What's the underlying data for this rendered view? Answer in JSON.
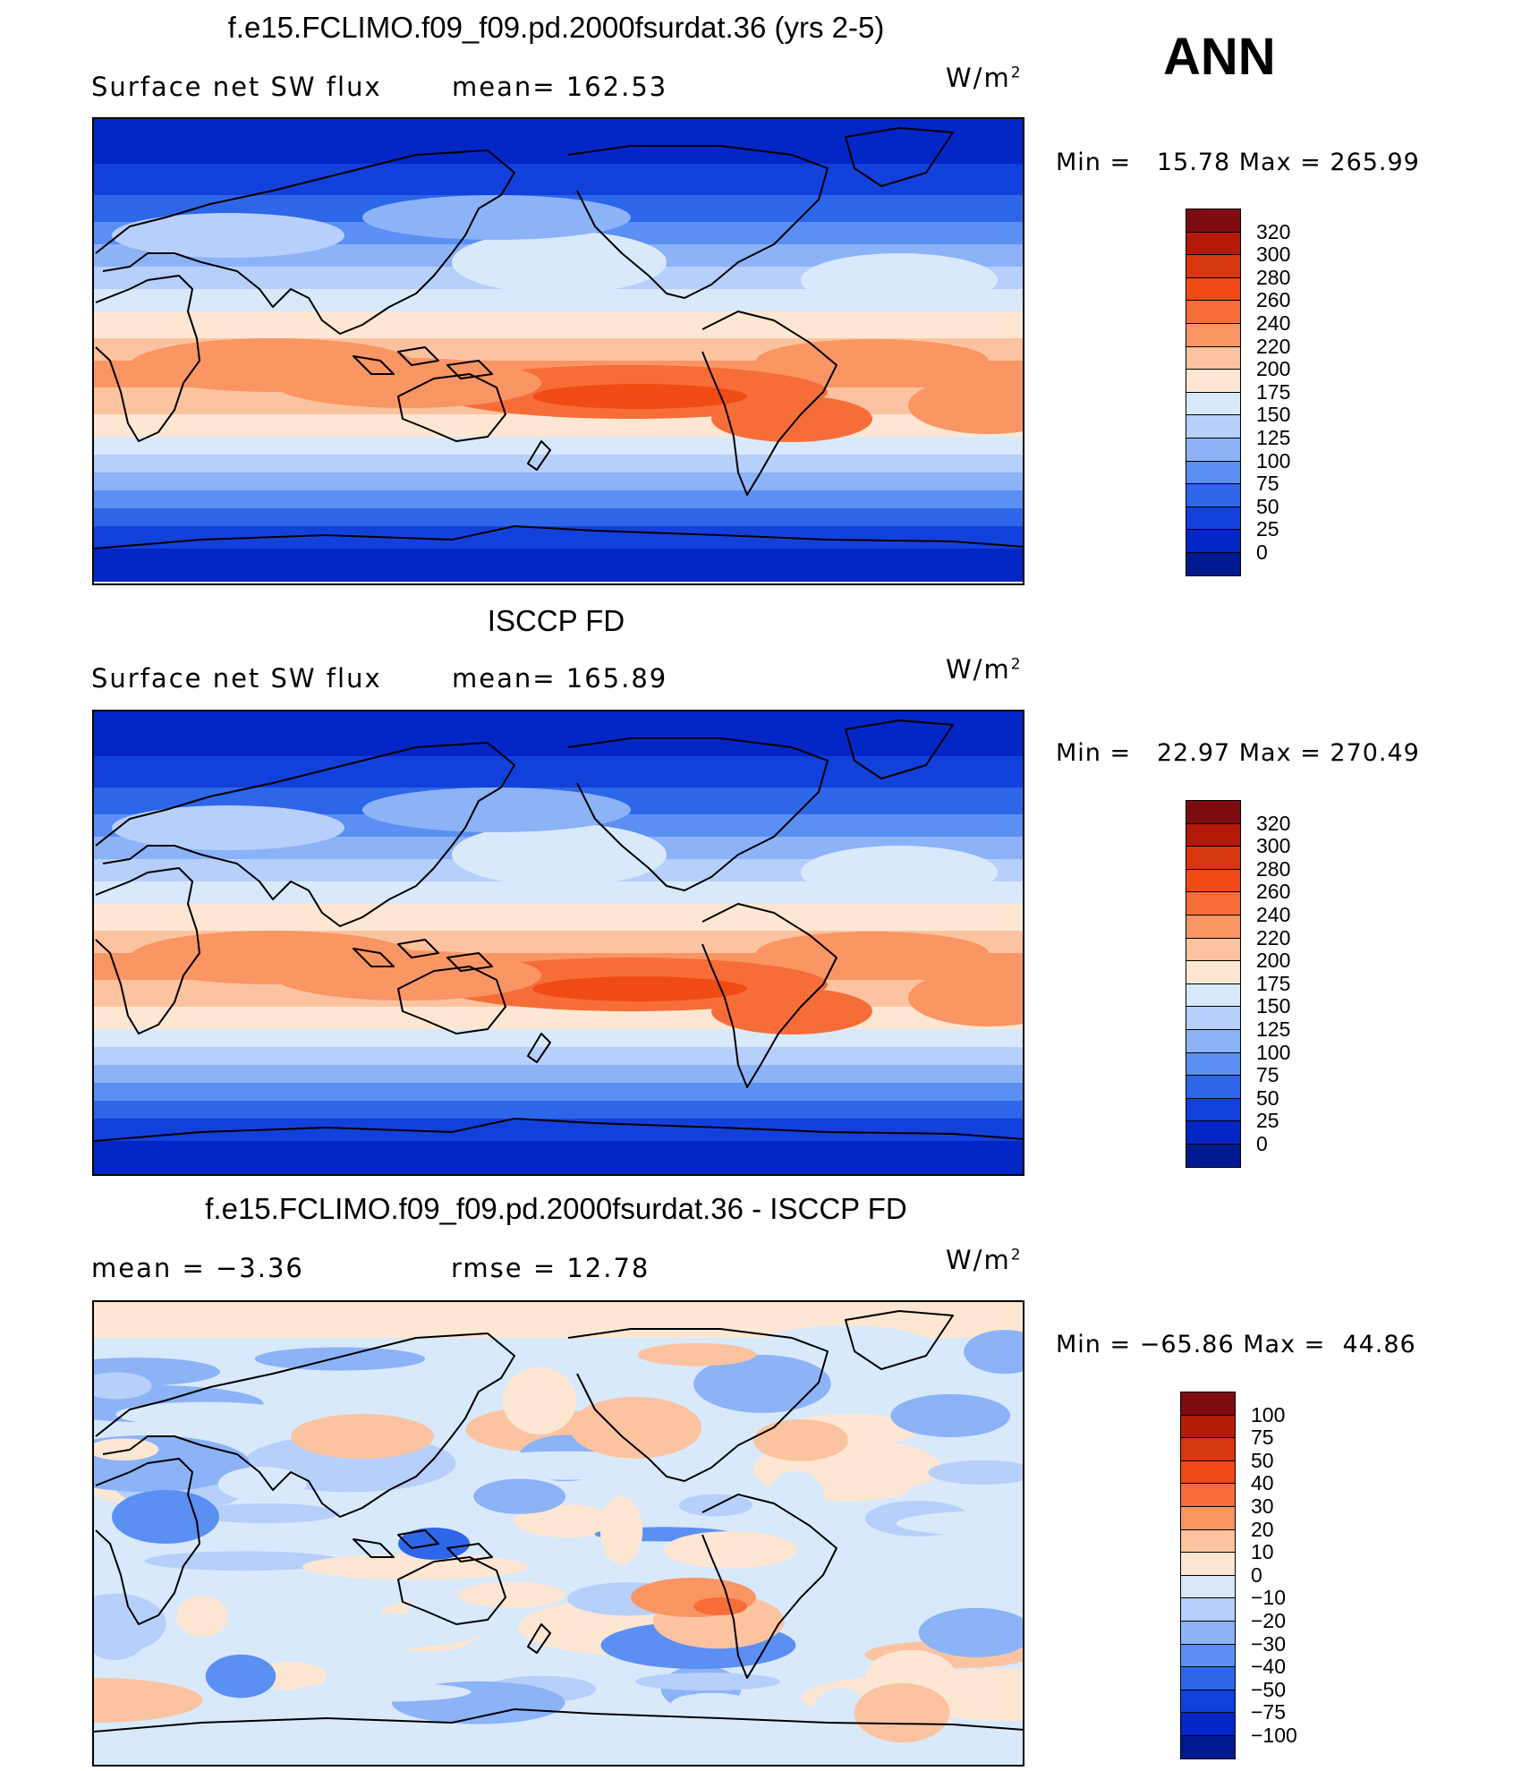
{
  "season": "ANN",
  "panels": [
    {
      "title": "f.e15.FCLIMO.f09_f09.pd.2000fsurdat.36 (yrs 2-5)",
      "left_text": "Surface net SW flux",
      "mid_text": "mean= 162.53",
      "units": "W/m",
      "units_sup": "2",
      "min_label": "Min =",
      "min_value": "15.78",
      "max_label": "Max =",
      "max_value": "265.99",
      "legend_levels": [
        "320",
        "300",
        "280",
        "260",
        "240",
        "220",
        "200",
        "175",
        "150",
        "125",
        "100",
        "75",
        "50",
        "25",
        "0"
      ],
      "legend_colors": [
        "#7e0b10",
        "#b31a08",
        "#d8360e",
        "#f04b14",
        "#f76d38",
        "#fa9564",
        "#fcc3a0",
        "#fde7d3",
        "#d9e9fc",
        "#b7cffb",
        "#8cb3f8",
        "#5b8ff2",
        "#2e66e9",
        "#1240db",
        "#0226c6",
        "#001a92"
      ],
      "field_colors": [
        "#0226c6",
        "#1240db",
        "#2e66e9",
        "#5b8ff2",
        "#8cb3f8",
        "#b7cffb",
        "#d9e9fc",
        "#fde7d3",
        "#fcc3a0",
        "#fa9564",
        "#f76d38",
        "#f04b14"
      ]
    },
    {
      "title": "ISCCP FD",
      "left_text": "Surface net SW flux",
      "mid_text": "mean= 165.89",
      "units": "W/m",
      "units_sup": "2",
      "min_label": "Min =",
      "min_value": "22.97",
      "max_label": "Max =",
      "max_value": "270.49",
      "legend_levels": [
        "320",
        "300",
        "280",
        "260",
        "240",
        "220",
        "200",
        "175",
        "150",
        "125",
        "100",
        "75",
        "50",
        "25",
        "0"
      ],
      "legend_colors": [
        "#7e0b10",
        "#b31a08",
        "#d8360e",
        "#f04b14",
        "#f76d38",
        "#fa9564",
        "#fcc3a0",
        "#fde7d3",
        "#d9e9fc",
        "#b7cffb",
        "#8cb3f8",
        "#5b8ff2",
        "#2e66e9",
        "#1240db",
        "#0226c6",
        "#001a92"
      ],
      "field_colors": [
        "#0226c6",
        "#1240db",
        "#2e66e9",
        "#5b8ff2",
        "#8cb3f8",
        "#b7cffb",
        "#d9e9fc",
        "#fde7d3",
        "#fcc3a0",
        "#fa9564",
        "#f76d38",
        "#f04b14"
      ]
    },
    {
      "title": "f.e15.FCLIMO.f09_f09.pd.2000fsurdat.36 - ISCCP FD",
      "left_text": "mean =   −3.36",
      "mid_text": "rmse =   12.78",
      "units": "W/m",
      "units_sup": "2",
      "min_label": "Min =",
      "min_value": "−65.86",
      "max_label": "Max =",
      "max_value": "44.86",
      "legend_levels": [
        "100",
        "75",
        "50",
        "40",
        "30",
        "20",
        "10",
        "0",
        "−10",
        "−20",
        "−30",
        "−40",
        "−50",
        "−75",
        "−100"
      ],
      "legend_colors": [
        "#7e0b10",
        "#b31a08",
        "#d8360e",
        "#f04b14",
        "#f76d38",
        "#fa9564",
        "#fcc3a0",
        "#fde7d3",
        "#d9e9fc",
        "#b7cffb",
        "#8cb3f8",
        "#5b8ff2",
        "#2e66e9",
        "#1240db",
        "#0226c6",
        "#001a92"
      ],
      "field_colors": [
        "#2e66e9",
        "#5b8ff2",
        "#8cb3f8",
        "#b7cffb",
        "#d9e9fc",
        "#fde7d3",
        "#fcc3a0",
        "#fa9564",
        "#f76d38"
      ]
    }
  ]
}
